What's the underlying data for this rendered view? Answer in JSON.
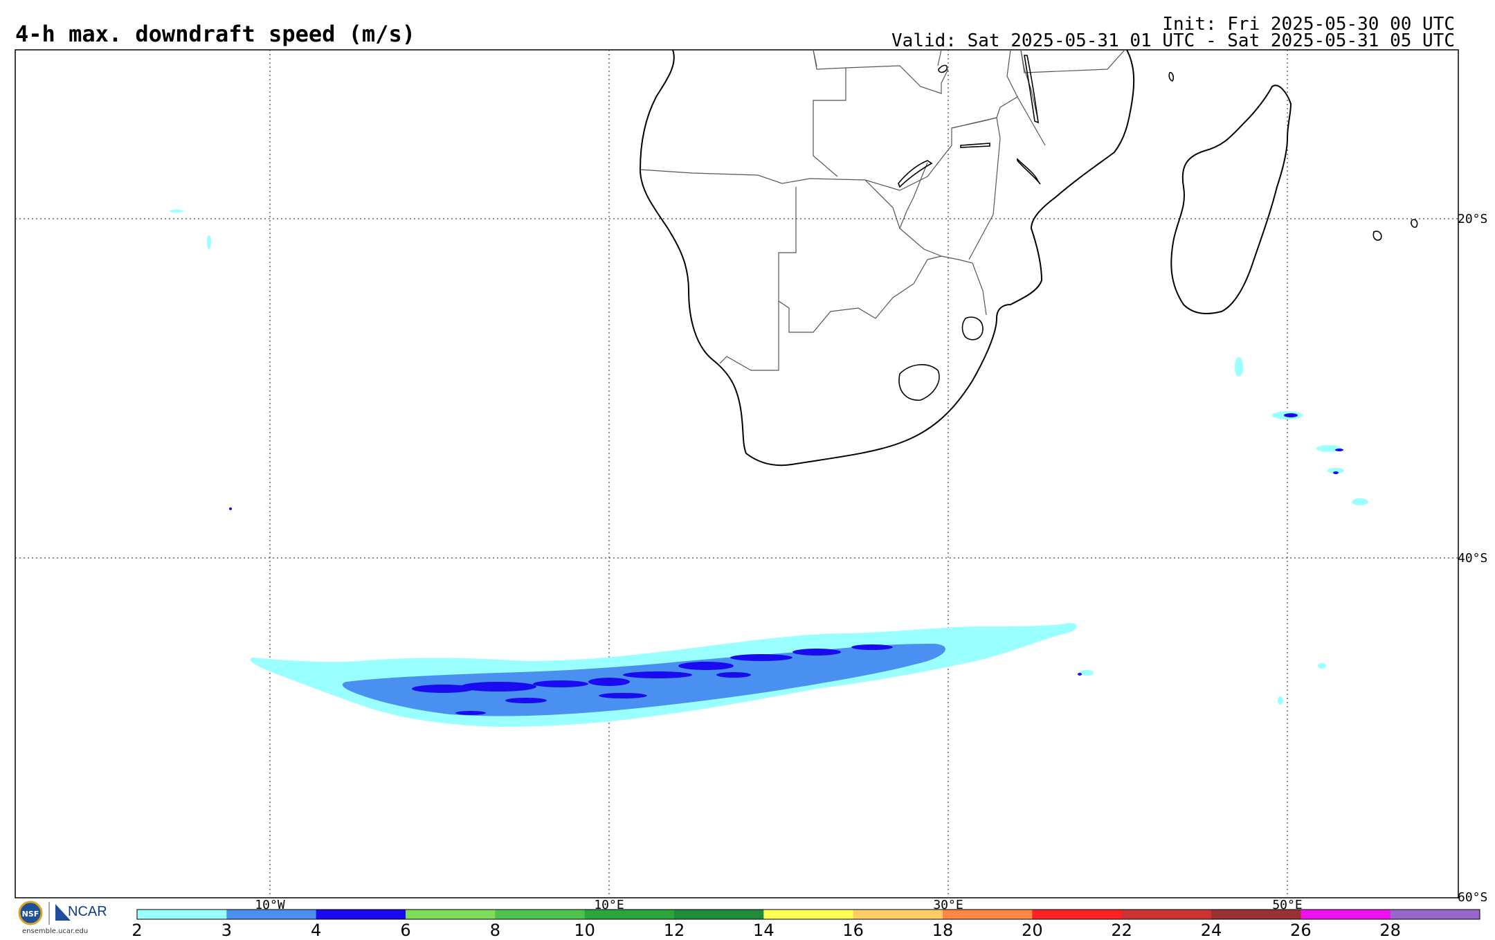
{
  "header": {
    "title": "4-h max. downdraft speed (m/s)",
    "init": "Init: Fri 2025-05-30 00 UTC",
    "valid": "Valid: Sat 2025-05-31 01 UTC - Sat 2025-05-31 05 UTC"
  },
  "map": {
    "lat_labels": [
      "20°S",
      "40°S",
      "60°S"
    ],
    "lon_labels": [
      "10°W",
      "10°E",
      "30°E",
      "50°E"
    ],
    "colors": {
      "land_outline": "#000000",
      "border": "#555555",
      "grid": "#444444"
    }
  },
  "colorbar": {
    "ticks": [
      "2",
      "3",
      "4",
      "6",
      "8",
      "10",
      "12",
      "14",
      "16",
      "18",
      "20",
      "22",
      "24",
      "26",
      "28"
    ],
    "colors": [
      "#99ffff",
      "#4a90f0",
      "#1a0af0",
      "#7ddc5a",
      "#4ec24a",
      "#2aa63a",
      "#1e8c3a",
      "#ffff55",
      "#ffcc66",
      "#ff8844",
      "#ff2222",
      "#cc3333",
      "#993333",
      "#ee11ee",
      "#9966cc"
    ]
  },
  "logo": {
    "org": "NCAR",
    "nsf": "NSF",
    "url": "ensemble.ucar.edu"
  }
}
